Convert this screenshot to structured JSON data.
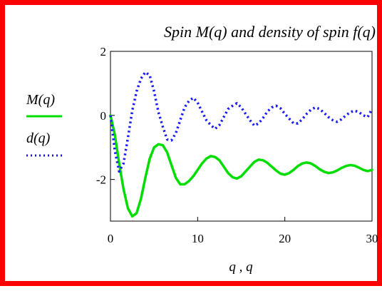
{
  "chart_data": {
    "type": "line",
    "title": "Spin M(q) and density of spin f(q)",
    "xlabel": "q , q",
    "ylabel": "",
    "xlim": [
      0,
      30
    ],
    "ylim": [
      -3.3,
      2
    ],
    "x_ticks": [
      "0",
      "10",
      "20",
      "30"
    ],
    "y_ticks": [
      "2",
      "0",
      "-2"
    ],
    "grid": false,
    "legend_position": "left",
    "series": [
      {
        "name": "M(q)",
        "color": "#00dd00",
        "style": "solid",
        "x": [
          0,
          0.5,
          1,
          1.5,
          2,
          2.5,
          3,
          3.5,
          4,
          4.5,
          5,
          5.5,
          6,
          6.5,
          7,
          7.5,
          8,
          8.5,
          9,
          9.5,
          10,
          10.5,
          11,
          11.5,
          12,
          12.5,
          13,
          13.5,
          14,
          14.5,
          15,
          15.5,
          16,
          16.5,
          17,
          17.5,
          18,
          18.5,
          19,
          19.5,
          20,
          20.5,
          21,
          21.5,
          22,
          22.5,
          23,
          23.5,
          24,
          24.5,
          25,
          25.5,
          26,
          26.5,
          27,
          27.5,
          28,
          28.5,
          29,
          29.5,
          30
        ],
        "y": [
          0,
          -0.6,
          -1.5,
          -2.3,
          -2.9,
          -3.15,
          -3.05,
          -2.6,
          -1.95,
          -1.35,
          -1.0,
          -0.9,
          -0.93,
          -1.15,
          -1.55,
          -1.95,
          -2.15,
          -2.15,
          -2.05,
          -1.9,
          -1.7,
          -1.5,
          -1.35,
          -1.27,
          -1.3,
          -1.4,
          -1.6,
          -1.8,
          -1.93,
          -1.97,
          -1.9,
          -1.75,
          -1.6,
          -1.45,
          -1.38,
          -1.4,
          -1.48,
          -1.6,
          -1.72,
          -1.82,
          -1.85,
          -1.8,
          -1.7,
          -1.58,
          -1.5,
          -1.47,
          -1.5,
          -1.58,
          -1.68,
          -1.76,
          -1.8,
          -1.78,
          -1.72,
          -1.64,
          -1.58,
          -1.55,
          -1.57,
          -1.63,
          -1.7,
          -1.74,
          -1.7
        ]
      },
      {
        "name": "d(q)",
        "color": "#1a1aff",
        "style": "dotted",
        "x": [
          0,
          0.5,
          1,
          1.5,
          2,
          2.5,
          3,
          3.5,
          4,
          4.5,
          5,
          5.5,
          6,
          6.5,
          7,
          7.5,
          8,
          8.5,
          9,
          9.5,
          10,
          10.5,
          11,
          11.5,
          12,
          12.5,
          13,
          13.5,
          14,
          14.5,
          15,
          15.5,
          16,
          16.5,
          17,
          17.5,
          18,
          18.5,
          19,
          19.5,
          20,
          20.5,
          21,
          21.5,
          22,
          22.5,
          23,
          23.5,
          24,
          24.5,
          25,
          25.5,
          26,
          26.5,
          27,
          27.5,
          28,
          28.5,
          29,
          29.5,
          30
        ],
        "y": [
          0,
          -1.1,
          -1.75,
          -1.5,
          -0.7,
          0.15,
          0.75,
          1.15,
          1.35,
          1.25,
          0.75,
          0.1,
          -0.35,
          -0.75,
          -0.78,
          -0.55,
          -0.15,
          0.25,
          0.45,
          0.55,
          0.4,
          0.12,
          -0.15,
          -0.3,
          -0.42,
          -0.3,
          -0.05,
          0.2,
          0.3,
          0.38,
          0.25,
          0.05,
          -0.15,
          -0.32,
          -0.25,
          -0.08,
          0.12,
          0.25,
          0.3,
          0.22,
          0.05,
          -0.1,
          -0.25,
          -0.25,
          -0.12,
          0.05,
          0.18,
          0.25,
          0.2,
          0.08,
          -0.05,
          -0.15,
          -0.2,
          -0.12,
          0.0,
          0.1,
          0.15,
          0.1,
          0.0,
          -0.05,
          0.2
        ]
      }
    ]
  }
}
